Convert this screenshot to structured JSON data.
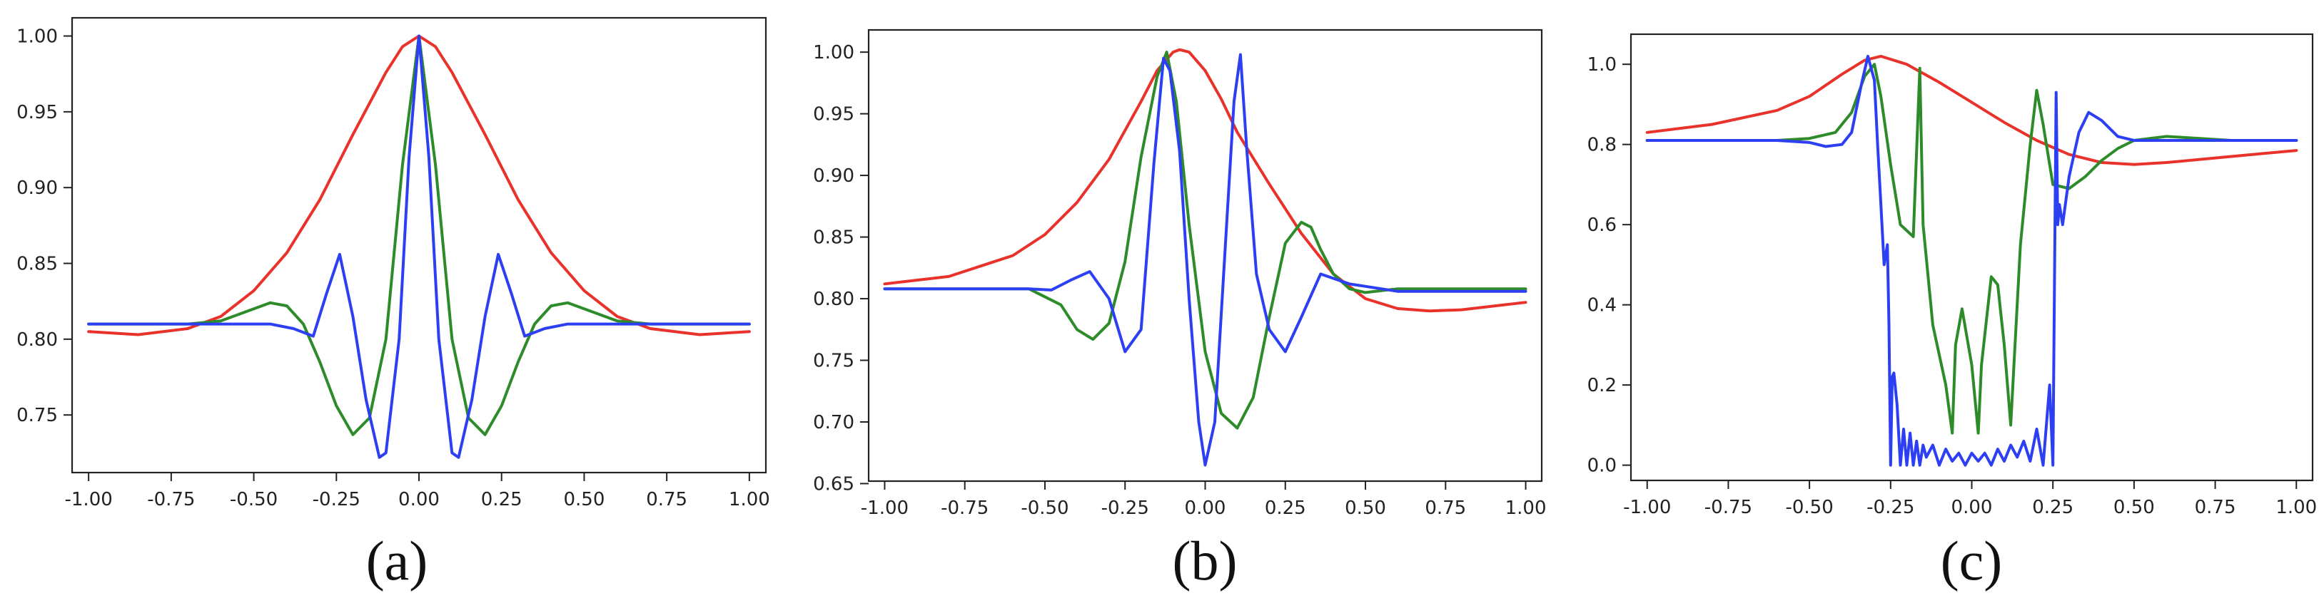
{
  "colors": {
    "red": "#e8322b",
    "green": "#2e8b2a",
    "blue": "#2c3ff2",
    "axis": "#222222"
  },
  "chart_data": [
    {
      "type": "line",
      "caption": "(a)",
      "xlim": [
        -1.05,
        1.05
      ],
      "ylim": [
        0.712,
        1.012
      ],
      "xticks": [
        -1.0,
        -0.75,
        -0.5,
        -0.25,
        0.0,
        0.25,
        0.5,
        0.75,
        1.0
      ],
      "xtick_labels": [
        "-1.00",
        "-0.75",
        "-0.50",
        "-0.25",
        "0.00",
        "0.25",
        "0.50",
        "0.75",
        "1.00"
      ],
      "yticks": [
        0.75,
        0.8,
        0.85,
        0.9,
        0.95,
        1.0
      ],
      "ytick_labels": [
        "0.75",
        "0.80",
        "0.85",
        "0.90",
        "0.95",
        "1.00"
      ],
      "grid": false,
      "series": [
        {
          "color": "red",
          "x": [
            -1.0,
            -0.85,
            -0.7,
            -0.6,
            -0.5,
            -0.4,
            -0.3,
            -0.2,
            -0.1,
            -0.05,
            0.0,
            0.05,
            0.1,
            0.2,
            0.3,
            0.4,
            0.5,
            0.6,
            0.7,
            0.85,
            1.0
          ],
          "y": [
            0.805,
            0.803,
            0.807,
            0.815,
            0.832,
            0.857,
            0.892,
            0.935,
            0.976,
            0.993,
            1.0,
            0.993,
            0.976,
            0.935,
            0.892,
            0.857,
            0.832,
            0.815,
            0.807,
            0.803,
            0.805
          ]
        },
        {
          "color": "green",
          "x": [
            -1.0,
            -0.7,
            -0.6,
            -0.5,
            -0.45,
            -0.4,
            -0.35,
            -0.3,
            -0.25,
            -0.2,
            -0.15,
            -0.1,
            -0.05,
            0.0,
            0.05,
            0.1,
            0.15,
            0.2,
            0.25,
            0.3,
            0.35,
            0.4,
            0.45,
            0.5,
            0.6,
            0.7,
            1.0
          ],
          "y": [
            0.81,
            0.81,
            0.812,
            0.82,
            0.824,
            0.822,
            0.81,
            0.785,
            0.756,
            0.737,
            0.748,
            0.8,
            0.915,
            1.0,
            0.915,
            0.8,
            0.748,
            0.737,
            0.756,
            0.785,
            0.81,
            0.822,
            0.824,
            0.82,
            0.812,
            0.81,
            0.81
          ]
        },
        {
          "color": "blue",
          "x": [
            -1.0,
            -0.45,
            -0.38,
            -0.32,
            -0.28,
            -0.24,
            -0.2,
            -0.16,
            -0.12,
            -0.1,
            -0.06,
            -0.03,
            0.0,
            0.03,
            0.06,
            0.1,
            0.12,
            0.16,
            0.2,
            0.24,
            0.28,
            0.32,
            0.38,
            0.45,
            1.0
          ],
          "y": [
            0.81,
            0.81,
            0.807,
            0.802,
            0.83,
            0.856,
            0.815,
            0.76,
            0.722,
            0.725,
            0.8,
            0.92,
            1.0,
            0.92,
            0.8,
            0.725,
            0.722,
            0.76,
            0.815,
            0.856,
            0.83,
            0.802,
            0.807,
            0.81,
            0.81
          ]
        }
      ]
    },
    {
      "type": "line",
      "caption": "(b)",
      "xlim": [
        -1.05,
        1.05
      ],
      "ylim": [
        0.652,
        1.018
      ],
      "xticks": [
        -1.0,
        -0.75,
        -0.5,
        -0.25,
        0.0,
        0.25,
        0.5,
        0.75,
        1.0
      ],
      "xtick_labels": [
        "-1.00",
        "-0.75",
        "-0.50",
        "-0.25",
        "0.00",
        "0.25",
        "0.50",
        "0.75",
        "1.00"
      ],
      "yticks": [
        0.65,
        0.7,
        0.75,
        0.8,
        0.85,
        0.9,
        0.95,
        1.0
      ],
      "ytick_labels": [
        "0.65",
        "0.70",
        "0.75",
        "0.80",
        "0.85",
        "0.90",
        "0.95",
        "1.00"
      ],
      "grid": false,
      "series": [
        {
          "color": "red",
          "x": [
            -1.0,
            -0.8,
            -0.6,
            -0.5,
            -0.4,
            -0.3,
            -0.2,
            -0.15,
            -0.1,
            -0.08,
            -0.05,
            0.0,
            0.05,
            0.1,
            0.2,
            0.3,
            0.4,
            0.5,
            0.6,
            0.7,
            0.8,
            0.9,
            1.0
          ],
          "y": [
            0.812,
            0.818,
            0.835,
            0.852,
            0.878,
            0.913,
            0.96,
            0.985,
            1.0,
            1.002,
            1.0,
            0.985,
            0.962,
            0.935,
            0.893,
            0.853,
            0.82,
            0.8,
            0.792,
            0.79,
            0.791,
            0.794,
            0.797
          ]
        },
        {
          "color": "green",
          "x": [
            -1.0,
            -0.55,
            -0.45,
            -0.4,
            -0.35,
            -0.3,
            -0.25,
            -0.2,
            -0.15,
            -0.12,
            -0.09,
            -0.05,
            0.0,
            0.05,
            0.1,
            0.15,
            0.2,
            0.25,
            0.3,
            0.33,
            0.36,
            0.4,
            0.45,
            0.5,
            0.6,
            1.0
          ],
          "y": [
            0.808,
            0.808,
            0.795,
            0.775,
            0.767,
            0.78,
            0.83,
            0.915,
            0.98,
            1.0,
            0.96,
            0.86,
            0.757,
            0.707,
            0.695,
            0.72,
            0.785,
            0.845,
            0.862,
            0.858,
            0.84,
            0.82,
            0.808,
            0.805,
            0.808,
            0.808
          ]
        },
        {
          "color": "blue",
          "x": [
            -1.0,
            -0.55,
            -0.48,
            -0.42,
            -0.36,
            -0.3,
            -0.25,
            -0.2,
            -0.16,
            -0.13,
            -0.11,
            -0.08,
            -0.05,
            -0.02,
            0.0,
            0.03,
            0.06,
            0.09,
            0.11,
            0.13,
            0.16,
            0.2,
            0.25,
            0.3,
            0.36,
            0.45,
            0.6,
            1.0
          ],
          "y": [
            0.808,
            0.808,
            0.807,
            0.815,
            0.822,
            0.8,
            0.757,
            0.775,
            0.91,
            0.995,
            0.985,
            0.92,
            0.8,
            0.7,
            0.665,
            0.7,
            0.83,
            0.96,
            0.998,
            0.92,
            0.82,
            0.775,
            0.757,
            0.785,
            0.82,
            0.812,
            0.806,
            0.806
          ]
        }
      ]
    },
    {
      "type": "line",
      "caption": "(c)",
      "xlim": [
        -1.05,
        1.05
      ],
      "ylim": [
        -0.038,
        1.075
      ],
      "xticks": [
        -1.0,
        -0.75,
        -0.5,
        -0.25,
        0.0,
        0.25,
        0.5,
        0.75,
        1.0
      ],
      "xtick_labels": [
        "-1.00",
        "-0.75",
        "-0.50",
        "-0.25",
        "0.00",
        "0.25",
        "0.50",
        "0.75",
        "1.00"
      ],
      "yticks": [
        0.0,
        0.2,
        0.4,
        0.6,
        0.8,
        1.0
      ],
      "ytick_labels": [
        "0.0",
        "0.2",
        "0.4",
        "0.6",
        "0.8",
        "1.0"
      ],
      "grid": false,
      "series": [
        {
          "color": "red",
          "x": [
            -1.0,
            -0.8,
            -0.6,
            -0.5,
            -0.4,
            -0.33,
            -0.28,
            -0.2,
            -0.1,
            0.0,
            0.1,
            0.2,
            0.3,
            0.4,
            0.5,
            0.6,
            0.8,
            1.0
          ],
          "y": [
            0.83,
            0.85,
            0.885,
            0.92,
            0.975,
            1.01,
            1.02,
            1.0,
            0.955,
            0.905,
            0.855,
            0.81,
            0.775,
            0.755,
            0.75,
            0.755,
            0.77,
            0.785
          ]
        },
        {
          "color": "green",
          "x": [
            -1.0,
            -0.6,
            -0.5,
            -0.42,
            -0.37,
            -0.33,
            -0.3,
            -0.28,
            -0.25,
            -0.22,
            -0.18,
            -0.16,
            -0.15,
            -0.12,
            -0.08,
            -0.06,
            -0.05,
            -0.03,
            0.0,
            0.02,
            0.03,
            0.06,
            0.08,
            0.1,
            0.12,
            0.13,
            0.15,
            0.18,
            0.2,
            0.22,
            0.25,
            0.3,
            0.35,
            0.4,
            0.45,
            0.5,
            0.6,
            0.8,
            1.0
          ],
          "y": [
            0.81,
            0.81,
            0.815,
            0.83,
            0.88,
            0.97,
            1.0,
            0.92,
            0.75,
            0.6,
            0.57,
            0.99,
            0.6,
            0.35,
            0.2,
            0.08,
            0.3,
            0.39,
            0.25,
            0.08,
            0.25,
            0.47,
            0.45,
            0.3,
            0.1,
            0.25,
            0.55,
            0.8,
            0.935,
            0.85,
            0.7,
            0.69,
            0.72,
            0.76,
            0.79,
            0.81,
            0.82,
            0.81,
            0.81
          ]
        },
        {
          "color": "blue",
          "x": [
            -1.0,
            -0.6,
            -0.5,
            -0.45,
            -0.4,
            -0.37,
            -0.34,
            -0.32,
            -0.3,
            -0.29,
            -0.28,
            -0.27,
            -0.26,
            -0.255,
            -0.25,
            -0.245,
            -0.24,
            -0.23,
            -0.22,
            -0.21,
            -0.2,
            -0.19,
            -0.18,
            -0.17,
            -0.16,
            -0.15,
            -0.14,
            -0.12,
            -0.1,
            -0.08,
            -0.06,
            -0.04,
            -0.02,
            0.0,
            0.02,
            0.04,
            0.06,
            0.08,
            0.1,
            0.12,
            0.14,
            0.16,
            0.18,
            0.2,
            0.22,
            0.24,
            0.25,
            0.26,
            0.265,
            0.27,
            0.28,
            0.3,
            0.33,
            0.36,
            0.4,
            0.45,
            0.5,
            0.6,
            1.0
          ],
          "y": [
            0.81,
            0.81,
            0.805,
            0.795,
            0.8,
            0.83,
            0.95,
            1.02,
            0.96,
            0.8,
            0.65,
            0.5,
            0.55,
            0.35,
            0.0,
            0.22,
            0.23,
            0.15,
            0.0,
            0.09,
            0.0,
            0.08,
            0.0,
            0.06,
            0.0,
            0.05,
            0.02,
            0.05,
            0.0,
            0.04,
            0.01,
            0.03,
            0.0,
            0.03,
            0.01,
            0.03,
            0.0,
            0.04,
            0.01,
            0.05,
            0.02,
            0.06,
            0.01,
            0.09,
            0.0,
            0.2,
            0.0,
            0.93,
            0.6,
            0.65,
            0.6,
            0.72,
            0.83,
            0.88,
            0.86,
            0.82,
            0.81,
            0.81,
            0.81
          ]
        }
      ]
    }
  ]
}
